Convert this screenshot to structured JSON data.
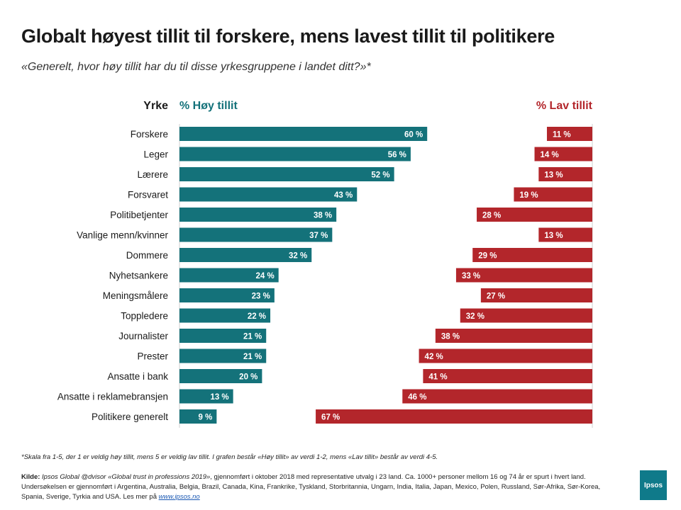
{
  "page": {
    "title": "Globalt høyest tillit til forskere, mens lavest tillit til politikere",
    "subtitle": "«Generelt, hvor høy tillit har du til disse yrkesgruppene i landet ditt?»*",
    "footnote": "*Skala fra 1-5, der 1 er veldig høy tillit, mens 5 er veldig lav tillit. I grafen består «Høy tillit» av verdi 1-2, mens «Lav tillit» består av verdi 4-5.",
    "source": {
      "label": "Kilde:",
      "survey": "Ipsos Global @dvisor «Global trust in professions 2019»",
      "text": ", gjennomført i oktober 2018 med representative utvalg i 23 land. Ca. 1000+ personer mellom 16 og 74 år er spurt i hvert land. Undersøkelsen er gjennomført i Argentina, Australia, Belgia, Brazil, Canada, Kina, Frankrike, Tyskland, Storbritannia, Ungarn, India, Italia, Japan, Mexico, Polen, Russland, Sør-Afrika, Sør-Korea, Spania, Sverige, Tyrkia and USA. Les mer på ",
      "link": "www.ipsos.no"
    },
    "logo_text": "Ipsos"
  },
  "colors": {
    "high": "#14727a",
    "low": "#b3262b"
  },
  "chart_data": {
    "type": "bar",
    "category_header": "Yrke",
    "categories": [
      "Forskere",
      "Leger",
      "Lærere",
      "Forsvaret",
      "Politibetjenter",
      "Vanlige menn/kvinner",
      "Dommere",
      "Nyhetsankere",
      "Meningsmålere",
      "Toppledere",
      "Journalister",
      "Prester",
      "Ansatte i bank",
      "Ansatte i reklamebransjen",
      "Politikere generelt"
    ],
    "series": [
      {
        "name": "% Høy tillit",
        "values": [
          60,
          56,
          52,
          43,
          38,
          37,
          32,
          24,
          23,
          22,
          21,
          21,
          20,
          13,
          9
        ]
      },
      {
        "name": "% Lav tillit",
        "values": [
          11,
          14,
          13,
          19,
          28,
          13,
          29,
          33,
          27,
          32,
          38,
          42,
          41,
          46,
          67
        ]
      }
    ],
    "value_suffix": " %",
    "high_axis_range": [
      0,
      100
    ],
    "low_axis_range": [
      0,
      67
    ]
  }
}
